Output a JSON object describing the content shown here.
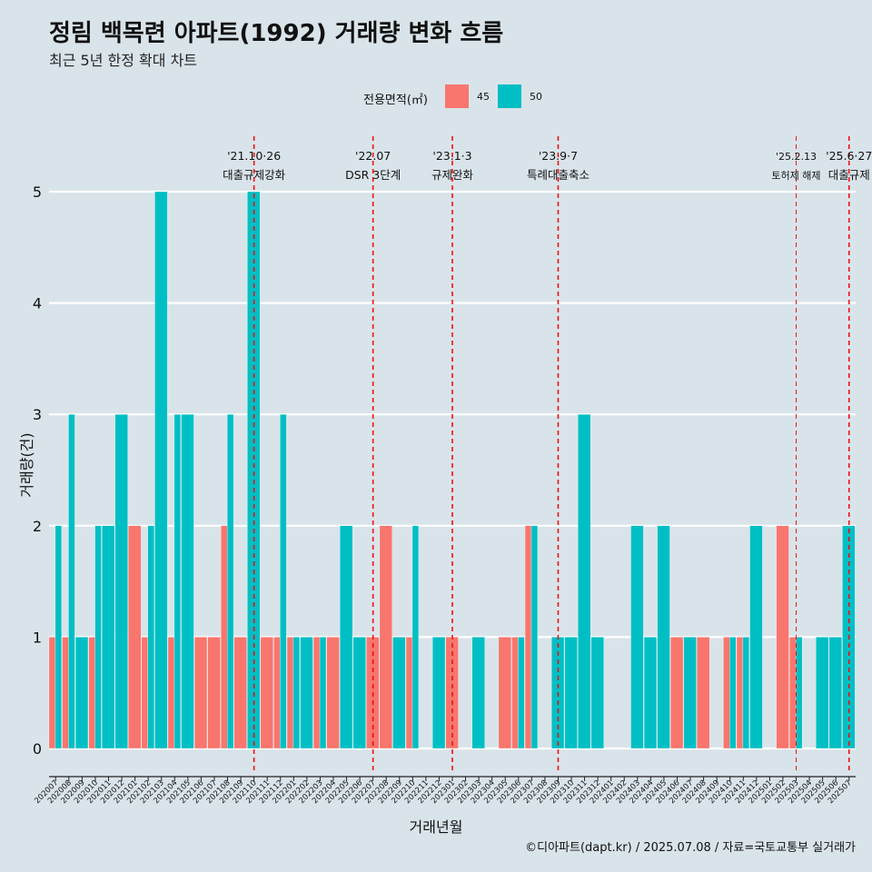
{
  "header": {
    "title": "정림 백목련 아파트(1992) 거래량 변화 흐름",
    "subtitle": "최근 5년 한정 확대 차트"
  },
  "footer": {
    "caption": "©디아파트(dapt.kr) / 2025.07.08 / 자료=국토교통부 실거래가"
  },
  "chart_data": {
    "type": "bar",
    "title": "정림 백목련 아파트(1992) 거래량 변화 흐름",
    "subtitle": "최근 5년 한정 확대 차트",
    "xlabel": "거래년월",
    "ylabel": "거래량(건)",
    "ylim": [
      -0.2,
      5.5
    ],
    "yticks": [
      "0",
      "1",
      "2",
      "3",
      "4",
      "5"
    ],
    "legend": {
      "title": "전용면적(㎡)",
      "position": "top",
      "items": [
        {
          "label": "45",
          "color": "#F8766D"
        },
        {
          "label": "50",
          "color": "#00BFC4"
        }
      ]
    },
    "categories": [
      "202007",
      "202008",
      "202009",
      "202010",
      "202011",
      "202012",
      "202101",
      "202102",
      "202103",
      "202104",
      "202105",
      "202106",
      "202107",
      "202108",
      "202109",
      "202110",
      "202111",
      "202112",
      "202201",
      "202202",
      "202203",
      "202204",
      "202205",
      "202206",
      "202207",
      "202208",
      "202209",
      "202210",
      "202211",
      "202212",
      "202301",
      "202302",
      "202303",
      "202304",
      "202305",
      "202306",
      "202307",
      "202308",
      "202309",
      "202310",
      "202311",
      "202312",
      "202401",
      "202402",
      "202403",
      "202404",
      "202405",
      "202406",
      "202407",
      "202408",
      "202409",
      "202410",
      "202411",
      "202412",
      "202501",
      "202502",
      "202503",
      "202504",
      "202505",
      "202506",
      "202507"
    ],
    "series": [
      {
        "name": "45",
        "color": "#F8766D",
        "values": [
          1,
          1,
          0,
          1,
          0,
          0,
          2,
          1,
          0,
          1,
          0,
          1,
          1,
          2,
          1,
          0,
          1,
          1,
          1,
          0,
          1,
          1,
          0,
          0,
          1,
          2,
          0,
          1,
          0,
          0,
          1,
          0,
          0,
          0,
          1,
          1,
          2,
          0,
          0,
          0,
          0,
          0,
          0,
          0,
          0,
          0,
          0,
          1,
          0,
          1,
          0,
          1,
          1,
          0,
          0,
          2,
          1,
          0,
          0,
          0,
          0
        ]
      },
      {
        "name": "50",
        "color": "#00BFC4",
        "values": [
          2,
          3,
          1,
          2,
          2,
          3,
          0,
          2,
          5,
          3,
          3,
          0,
          0,
          3,
          0,
          5,
          0,
          3,
          1,
          1,
          1,
          0,
          2,
          1,
          0,
          0,
          1,
          2,
          0,
          1,
          0,
          0,
          1,
          0,
          0,
          1,
          2,
          0,
          1,
          1,
          3,
          1,
          0,
          0,
          2,
          1,
          2,
          0,
          1,
          0,
          0,
          1,
          1,
          2,
          0,
          0,
          1,
          0,
          1,
          1,
          2
        ]
      }
    ],
    "annotations": [
      {
        "category": "202110",
        "date": "'21.10·26",
        "label": "대출규제강화"
      },
      {
        "category": "202207",
        "date": "'22.07",
        "label": "DSR 3단계"
      },
      {
        "category": "202301",
        "date": "'23.1·3",
        "label": "규제완화"
      },
      {
        "category": "202309",
        "date": "'23.9·7",
        "label": "특례대출축소"
      },
      {
        "category": "202503",
        "date": "'25.2.13",
        "label": "토허제 해제"
      },
      {
        "category": "202507",
        "date": "'25.6·27",
        "label": "대출규제"
      }
    ]
  }
}
